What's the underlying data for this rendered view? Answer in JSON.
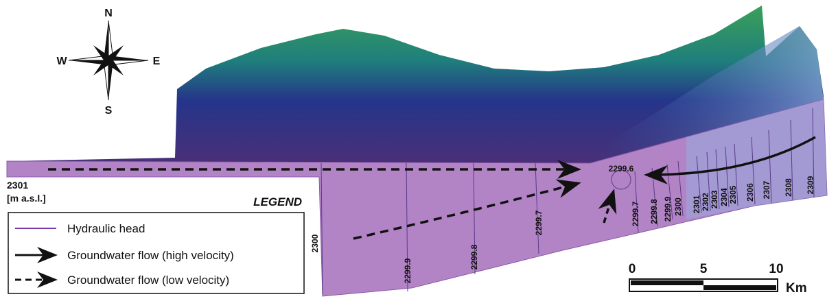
{
  "compass": {
    "north": "N",
    "south": "S",
    "west": "W",
    "east": "E"
  },
  "elevation_label": {
    "value": "2301",
    "unit": "[m a.s.l.]"
  },
  "legend": {
    "title": "LEGEND",
    "items": [
      "Hydraulic head",
      "Groundwater flow (high velocity)",
      "Groundwater flow (low velocity)"
    ]
  },
  "contour_labels": {
    "section": [
      "2300",
      "2299.9",
      "2299.8",
      "2299.7"
    ],
    "center": "2299.6",
    "right": [
      "2299.7",
      "2299.8",
      "2299.9",
      "2300",
      "2301",
      "2302",
      "2303",
      "2304",
      "2305",
      "2306",
      "2307",
      "2308",
      "2309"
    ]
  },
  "scale_bar": {
    "ticks": [
      "0",
      "5",
      "10"
    ],
    "unit": "Km"
  }
}
